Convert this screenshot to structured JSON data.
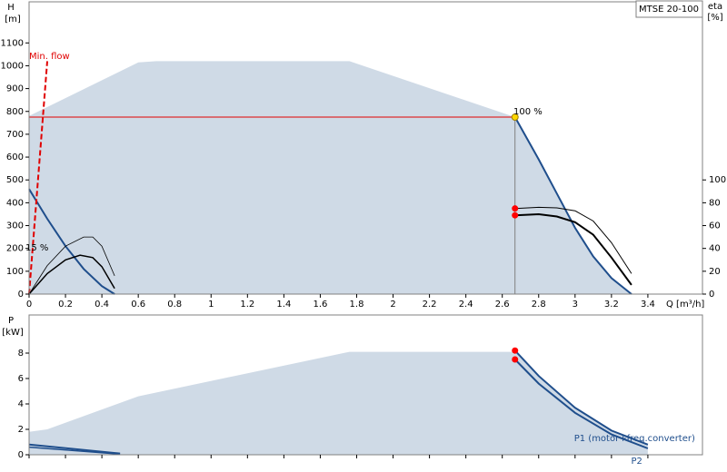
{
  "chart_data": [
    {
      "type": "line",
      "title": "MTSE 20-100",
      "y_label": "H",
      "y_unit": "[m]",
      "y2_label": "eta",
      "y2_unit": "[%]",
      "x_label": "Q [m³/h]",
      "annotations": [
        "Min. flow",
        "15 %",
        "100 %"
      ],
      "xlim": [
        0,
        3.7
      ],
      "ylim": [
        0,
        1280
      ],
      "y2lim": [
        0,
        256
      ],
      "xticks": [
        0,
        0.2,
        0.4,
        0.6,
        0.8,
        1,
        1.2,
        1.4,
        1.6,
        1.8,
        2,
        2.2,
        2.4,
        2.6,
        2.8,
        3,
        3.2,
        3.4
      ],
      "yticks": [
        0,
        100,
        200,
        300,
        400,
        500,
        600,
        700,
        800,
        900,
        1000,
        1100
      ],
      "y2ticks": [
        0,
        20,
        40,
        60,
        80,
        100
      ],
      "series": [
        {
          "style": "area",
          "color": "#cfdae6",
          "x": [
            0,
            0,
            0.6,
            0.7,
            1.76,
            2.67,
            2.8,
            2.9,
            3.0,
            3.1,
            3.2,
            3.31
          ],
          "values": [
            0,
            780,
            1015,
            1020,
            1020,
            775,
            590,
            440,
            290,
            165,
            70,
            0
          ]
        },
        {
          "style": "line",
          "color": "#1f4e8c",
          "width": 2,
          "x": [
            2.67,
            2.8,
            2.9,
            3.0,
            3.1,
            3.2,
            3.31
          ],
          "values": [
            775,
            590,
            440,
            290,
            165,
            70,
            0
          ]
        },
        {
          "style": "line",
          "color": "#1f4e8c",
          "width": 2,
          "x": [
            0,
            0.1,
            0.2,
            0.3,
            0.4,
            0.47
          ],
          "values": [
            460,
            330,
            210,
            110,
            35,
            0
          ]
        },
        {
          "style": "line",
          "color": "#e00000",
          "width": 1,
          "x": [
            0,
            2.67
          ],
          "values": [
            775,
            775
          ]
        },
        {
          "style": "line",
          "color": "#808080",
          "width": 1,
          "x": [
            2.67,
            2.67
          ],
          "values": [
            0,
            775
          ]
        },
        {
          "style": "dash",
          "color": "#e00000",
          "width": 2,
          "x": [
            0,
            0.1
          ],
          "values": [
            0,
            1020
          ]
        },
        {
          "style": "line",
          "axis": "y2",
          "color": "#000000",
          "width": 1,
          "x": [
            2.67,
            2.8,
            2.9,
            3.0,
            3.1,
            3.2,
            3.31
          ],
          "values": [
            75,
            76,
            75.5,
            73,
            64,
            45,
            18
          ]
        },
        {
          "style": "line",
          "axis": "y2",
          "color": "#000000",
          "width": 2,
          "x": [
            2.67,
            2.8,
            2.9,
            3.0,
            3.1,
            3.2,
            3.31
          ],
          "values": [
            69,
            70,
            68,
            63,
            52,
            32,
            8
          ]
        },
        {
          "style": "line",
          "axis": "y2",
          "color": "#000000",
          "width": 0.8,
          "x": [
            0,
            0.1,
            0.2,
            0.3,
            0.35,
            0.4,
            0.47
          ],
          "values": [
            0,
            25,
            42,
            50,
            50,
            42,
            16
          ]
        },
        {
          "style": "line",
          "axis": "y2",
          "color": "#000000",
          "width": 1.5,
          "x": [
            0,
            0.1,
            0.2,
            0.28,
            0.35,
            0.4,
            0.47
          ],
          "values": [
            0,
            18,
            30,
            34,
            32,
            24,
            5
          ]
        },
        {
          "style": "point",
          "axis": "y2",
          "color": "#ff0000",
          "x": [
            2.67,
            2.67
          ],
          "values": [
            75,
            69
          ]
        },
        {
          "style": "point",
          "color": "#ffd700",
          "x": [
            2.67
          ],
          "values": [
            775
          ]
        }
      ]
    },
    {
      "type": "line",
      "y_label": "P",
      "y_unit": "[kW]",
      "xlim": [
        0,
        3.7
      ],
      "ylim": [
        0,
        11
      ],
      "xticks": [
        0,
        0.2,
        0.4,
        0.6,
        0.8,
        1,
        1.2,
        1.4,
        1.6,
        1.8,
        2,
        2.2,
        2.4,
        2.6,
        2.8,
        3,
        3.2,
        3.4
      ],
      "yticks": [
        0,
        2,
        4,
        6,
        8
      ],
      "series": [
        {
          "style": "area",
          "color": "#cfdae6",
          "x": [
            0,
            0,
            0.1,
            0.6,
            1.76,
            2.67,
            2.8,
            3.0,
            3.2,
            3.4,
            3.4
          ],
          "values": [
            0,
            1.8,
            2.0,
            4.6,
            8.1,
            8.1,
            6.2,
            3.7,
            1.9,
            0.8,
            0
          ]
        },
        {
          "name": "P1 (motor+freq.converter)",
          "style": "line",
          "color": "#1f4e8c",
          "width": 2,
          "x": [
            2.67,
            2.8,
            3.0,
            3.2,
            3.4
          ],
          "values": [
            8.2,
            6.2,
            3.7,
            1.9,
            0.8
          ]
        },
        {
          "name": "P2",
          "style": "line",
          "color": "#1f4e8c",
          "width": 2,
          "x": [
            2.67,
            2.8,
            3.0,
            3.2,
            3.4
          ],
          "values": [
            7.5,
            5.6,
            3.3,
            1.6,
            0.5
          ]
        },
        {
          "style": "line",
          "color": "#1f4e8c",
          "width": 2,
          "x": [
            0,
            0.5
          ],
          "values": [
            0.8,
            0.1
          ]
        },
        {
          "style": "line",
          "color": "#1f4e8c",
          "width": 1.5,
          "x": [
            0,
            0.5
          ],
          "values": [
            0.6,
            0.05
          ]
        },
        {
          "style": "point",
          "color": "#ff0000",
          "x": [
            2.67,
            2.67
          ],
          "values": [
            8.2,
            7.5
          ]
        }
      ]
    }
  ]
}
